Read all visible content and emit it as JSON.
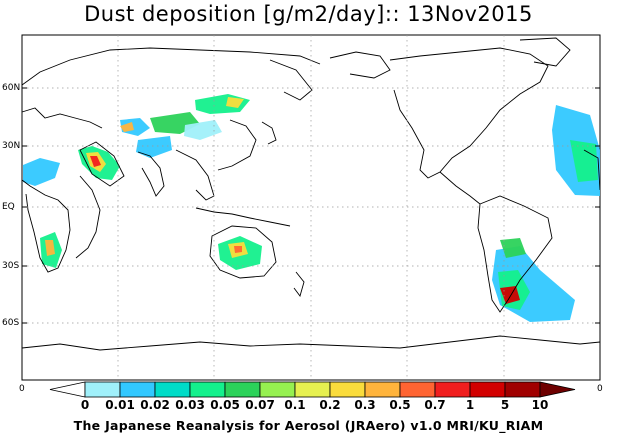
{
  "title": "Dust deposition [g/m2/day]:: 13Nov2015",
  "latitude_labels": [
    "60N",
    "30N",
    "EQ",
    "30S",
    "60S"
  ],
  "longitude_edge_labels": {
    "left": "0",
    "right": "0"
  },
  "colorbar": {
    "labels": [
      "0",
      "0.01",
      "0.02",
      "0.03",
      "0.05",
      "0.07",
      "0.1",
      "0.2",
      "0.3",
      "0.5",
      "0.7",
      "1",
      "5",
      "10"
    ],
    "colors": [
      "#ffffff",
      "#a0f0fa",
      "#32c8ff",
      "#00dcc8",
      "#14f08c",
      "#2cd25a",
      "#96f050",
      "#e6f050",
      "#fadc3c",
      "#ffb43c",
      "#ff6432",
      "#f01e1e",
      "#d20000",
      "#a00000",
      "#6e0000"
    ]
  },
  "credit": "The Japanese Reanalysis for Aerosol (JRAero) v1.0 MRI/KU_RIAM"
}
